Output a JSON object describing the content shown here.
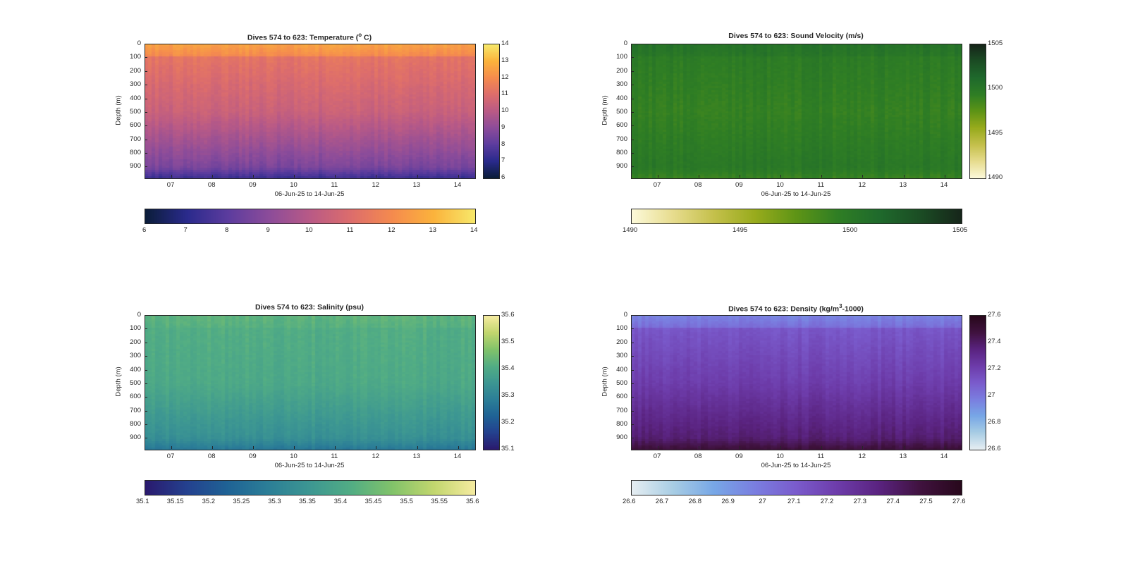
{
  "date_range_label": "06-Jun-25 to 14-Jun-25",
  "ylabel": "Depth (m)",
  "depth_ticks": [
    "0",
    "100",
    "200",
    "300",
    "400",
    "500",
    "600",
    "700",
    "800",
    "900"
  ],
  "day_ticks": [
    "07",
    "08",
    "09",
    "10",
    "11",
    "12",
    "13",
    "14"
  ],
  "panels": [
    {
      "key": "temperature",
      "title_pre": "Dives 574 to 623: Temperature (",
      "title_sup": "o",
      "title_post": " C)",
      "colormap": [
        "#0b1d3a",
        "#2a2a8c",
        "#5c3c9e",
        "#8c4c9a",
        "#b95a86",
        "#dd6d6c",
        "#f58b4e",
        "#fbb33c",
        "#f7e86a"
      ],
      "range": [
        6,
        14
      ],
      "side_ticks": [
        "6",
        "7",
        "8",
        "9",
        "10",
        "11",
        "12",
        "13",
        "14"
      ],
      "bottom_ticks": [
        "6",
        "7",
        "8",
        "9",
        "10",
        "11",
        "12",
        "13",
        "14"
      ],
      "profile": {
        "surface": 12.6,
        "mid": 10.4,
        "deep": 8.6,
        "bottom": 7.3
      }
    },
    {
      "key": "sound_velocity",
      "title_pre": "Dives 574 to 623: Sound Velocity (m/s)",
      "title_sup": "",
      "title_post": "",
      "colormap": [
        "#fcf9d9",
        "#e7dc8e",
        "#c4c04b",
        "#98ab1c",
        "#5e9416",
        "#2f7e24",
        "#1f6a2c",
        "#1b4d24",
        "#16261a"
      ],
      "range": [
        1490,
        1505
      ],
      "side_ticks": [
        "1490",
        "1495",
        "1500",
        "1505"
      ],
      "bottom_ticks": [
        "1490",
        "1495",
        "1500",
        "1505"
      ],
      "profile": {
        "surface": 1500.5,
        "mid": 1499.2,
        "deep": 1500.0,
        "bottom": 1499.0
      }
    },
    {
      "key": "salinity",
      "title_pre": "Dives 574 to 623: Salinity (psu)",
      "title_sup": "",
      "title_post": "",
      "colormap": [
        "#2a1a6e",
        "#24418f",
        "#1f6395",
        "#2c7f97",
        "#3d9792",
        "#52ad84",
        "#82c36a",
        "#c2d66e",
        "#f5eba0"
      ],
      "range": [
        35.1,
        35.6
      ],
      "side_ticks": [
        "35.1",
        "35.2",
        "35.3",
        "35.4",
        "35.5",
        "35.6"
      ],
      "bottom_ticks": [
        "35.1",
        "35.15",
        "35.2",
        "35.25",
        "35.3",
        "35.35",
        "35.4",
        "35.45",
        "35.5",
        "35.55",
        "35.6"
      ],
      "profile": {
        "surface": 35.43,
        "mid": 35.4,
        "deep": 35.33,
        "bottom": 35.27
      }
    },
    {
      "key": "density",
      "title_pre": "Dives 574 to 623: Density (kg/m",
      "title_sup": "3",
      "title_post": "-1000)",
      "colormap": [
        "#e6eef2",
        "#a8cde4",
        "#77a7e6",
        "#7a7ee0",
        "#7a5bcc",
        "#6d3caa",
        "#5a2380",
        "#40123f",
        "#28081c"
      ],
      "range": [
        26.6,
        27.6
      ],
      "side_ticks": [
        "26.6",
        "26.8",
        "27",
        "27.2",
        "27.4",
        "27.6"
      ],
      "bottom_ticks": [
        "26.6",
        "26.7",
        "26.8",
        "26.9",
        "27",
        "27.1",
        "27.2",
        "27.3",
        "27.4",
        "27.5",
        "27.6"
      ],
      "profile": {
        "surface": 26.95,
        "mid": 27.22,
        "deep": 27.38,
        "bottom": 27.5
      }
    }
  ],
  "chart_data": [
    {
      "type": "heatmap",
      "title": "Dives 574 to 623: Temperature (° C)",
      "xlabel": "06-Jun-25 to 14-Jun-25",
      "ylabel": "Depth (m)",
      "x_ticks": [
        "07",
        "08",
        "09",
        "10",
        "11",
        "12",
        "13",
        "14"
      ],
      "y_ticks": [
        0,
        100,
        200,
        300,
        400,
        500,
        600,
        700,
        800,
        900
      ],
      "colorbar_range": [
        6,
        14
      ],
      "depth_profile": {
        "depths": [
          0,
          100,
          500,
          900,
          980
        ],
        "values": [
          12.6,
          11.0,
          10.4,
          8.6,
          7.3
        ]
      }
    },
    {
      "type": "heatmap",
      "title": "Dives 574 to 623: Sound Velocity (m/s)",
      "xlabel": "06-Jun-25 to 14-Jun-25",
      "ylabel": "Depth (m)",
      "x_ticks": [
        "07",
        "08",
        "09",
        "10",
        "11",
        "12",
        "13",
        "14"
      ],
      "y_ticks": [
        0,
        100,
        200,
        300,
        400,
        500,
        600,
        700,
        800,
        900
      ],
      "colorbar_range": [
        1490,
        1505
      ],
      "depth_profile": {
        "depths": [
          0,
          100,
          500,
          900,
          980
        ],
        "values": [
          1500.5,
          1498.5,
          1499.2,
          1500.0,
          1499.0
        ]
      }
    },
    {
      "type": "heatmap",
      "title": "Dives 574 to 623: Salinity (psu)",
      "xlabel": "06-Jun-25 to 14-Jun-25",
      "ylabel": "Depth (m)",
      "x_ticks": [
        "07",
        "08",
        "09",
        "10",
        "11",
        "12",
        "13",
        "14"
      ],
      "y_ticks": [
        0,
        100,
        200,
        300,
        400,
        500,
        600,
        700,
        800,
        900
      ],
      "colorbar_range": [
        35.1,
        35.6
      ],
      "depth_profile": {
        "depths": [
          0,
          100,
          500,
          900,
          980
        ],
        "values": [
          35.43,
          35.49,
          35.4,
          35.33,
          35.27
        ]
      }
    },
    {
      "type": "heatmap",
      "title": "Dives 574 to 623: Density (kg/m³-1000)",
      "xlabel": "06-Jun-25 to 14-Jun-25",
      "ylabel": "Depth (m)",
      "x_ticks": [
        "07",
        "08",
        "09",
        "10",
        "11",
        "12",
        "13",
        "14"
      ],
      "y_ticks": [
        0,
        100,
        200,
        300,
        400,
        500,
        600,
        700,
        800,
        900
      ],
      "colorbar_range": [
        26.6,
        27.6
      ],
      "depth_profile": {
        "depths": [
          0,
          100,
          500,
          900,
          980
        ],
        "values": [
          26.95,
          27.15,
          27.22,
          27.38,
          27.5
        ]
      }
    }
  ]
}
